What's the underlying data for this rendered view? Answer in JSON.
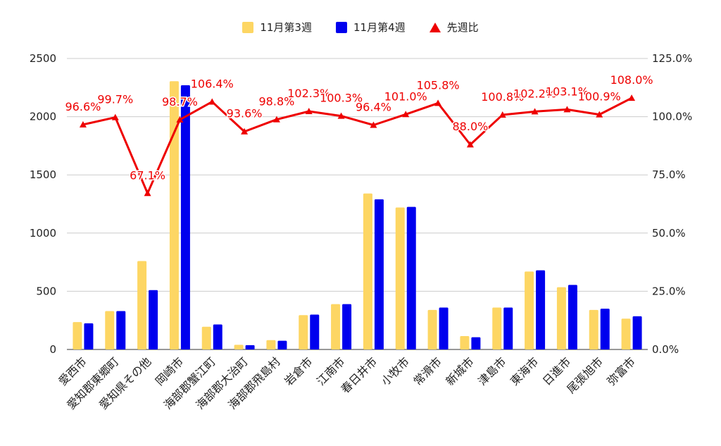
{
  "colors": {
    "series1": "#FDD663",
    "series2": "#0000EE",
    "ratio": "#EE0000",
    "grid": "#CCCCCC",
    "axis": "#333333"
  },
  "legend": [
    {
      "label": "11月第3週",
      "icon": "square-swatch-icon"
    },
    {
      "label": "11月第4週",
      "icon": "square-swatch-icon"
    },
    {
      "label": "先週比",
      "icon": "triangle-marker-icon"
    }
  ],
  "chart_data": {
    "type": "bar",
    "categories": [
      "愛西市",
      "愛知郡東郷町",
      "愛知県その他",
      "岡崎市",
      "海部郡蟹江町",
      "海部郡大治町",
      "海部郡飛島村",
      "岩倉市",
      "江南市",
      "春日井市",
      "小牧市",
      "常滑市",
      "新城市",
      "津島市",
      "東海市",
      "日進市",
      "尾張旭市",
      "弥富市"
    ],
    "series": [
      {
        "name": "11月第3週",
        "values": [
          235,
          330,
          760,
          2305,
          195,
          40,
          80,
          295,
          390,
          1340,
          1220,
          340,
          115,
          360,
          670,
          535,
          340,
          265
        ]
      },
      {
        "name": "11月第4週",
        "values": [
          225,
          330,
          510,
          2270,
          215,
          37,
          75,
          300,
          390,
          1290,
          1225,
          360,
          105,
          360,
          680,
          555,
          350,
          285
        ]
      }
    ],
    "line_series": {
      "name": "先週比",
      "values": [
        96.6,
        99.7,
        67.1,
        98.7,
        106.4,
        93.6,
        98.8,
        102.3,
        100.3,
        96.4,
        101.0,
        105.8,
        88.0,
        100.8,
        102.2,
        103.1,
        100.9,
        108.0
      ],
      "labels": [
        "96.6%",
        "99.7%",
        "67.1%",
        "98.7%",
        "106.4%",
        "93.6%",
        "98.8%",
        "102.3%",
        "100.3%",
        "96.4%",
        "101.0%",
        "105.8%",
        "88.0%",
        "100.8%",
        "102.2%",
        "103.1%",
        "100.9%",
        "108.0%"
      ]
    },
    "y_left": {
      "min": 0,
      "max": 2500,
      "ticks": [
        "0",
        "500",
        "1000",
        "1500",
        "2000",
        "2500"
      ]
    },
    "y_right": {
      "min": 0,
      "max": 125,
      "ticks": [
        "0.0%",
        "25.0%",
        "50.0%",
        "75.0%",
        "100.0%",
        "125.0%"
      ]
    },
    "legend_position": "top",
    "grid": true
  }
}
